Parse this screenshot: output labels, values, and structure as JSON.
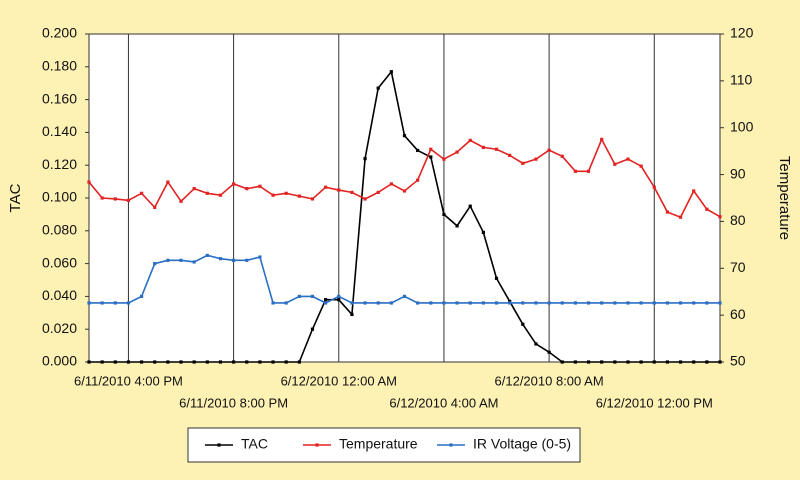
{
  "chart_data": {
    "type": "line",
    "x": [
      "6/11/2010 2:30 PM",
      "6/11/2010 3:00 PM",
      "6/11/2010 3:30 PM",
      "6/11/2010 4:00 PM",
      "6/11/2010 4:30 PM",
      "6/11/2010 5:00 PM",
      "6/11/2010 5:30 PM",
      "6/11/2010 6:00 PM",
      "6/11/2010 6:30 PM",
      "6/11/2010 7:00 PM",
      "6/11/2010 7:30 PM",
      "6/11/2010 8:00 PM",
      "6/11/2010 8:30 PM",
      "6/11/2010 9:00 PM",
      "6/11/2010 9:30 PM",
      "6/11/2010 10:00 PM",
      "6/11/2010 10:30 PM",
      "6/11/2010 11:00 PM",
      "6/11/2010 11:30 PM",
      "6/12/2010 12:00 AM",
      "6/12/2010 12:30 AM",
      "6/12/2010 1:00 AM",
      "6/12/2010 1:30 AM",
      "6/12/2010 2:00 AM",
      "6/12/2010 2:30 AM",
      "6/12/2010 3:00 AM",
      "6/12/2010 3:30 AM",
      "6/12/2010 4:00 AM",
      "6/12/2010 4:30 AM",
      "6/12/2010 5:00 AM",
      "6/12/2010 5:30 AM",
      "6/12/2010 6:00 AM",
      "6/12/2010 6:30 AM",
      "6/12/2010 7:00 AM",
      "6/12/2010 7:30 AM",
      "6/12/2010 8:00 AM",
      "6/12/2010 8:30 AM",
      "6/12/2010 9:00 AM",
      "6/12/2010 9:30 AM",
      "6/12/2010 10:00 AM",
      "6/12/2010 10:30 AM",
      "6/12/2010 11:00 AM",
      "6/12/2010 11:30 AM",
      "6/12/2010 12:00 PM",
      "6/12/2010 12:30 PM",
      "6/12/2010 1:00 PM",
      "6/12/2010 1:30 PM",
      "6/12/2010 2:00 PM",
      "6/12/2010 2:30 PM"
    ],
    "xlim": [
      "6/11/2010 2:30 PM",
      "6/12/2010 2:30 PM"
    ],
    "xticks": [
      "6/11/2010 4:00 PM",
      "6/11/2010 8:00 PM",
      "6/12/2010 12:00 AM",
      "6/12/2010 4:00 AM",
      "6/12/2010 8:00 AM",
      "6/12/2010 12:00 PM"
    ],
    "ylabel": "TAC",
    "y2label": "Temperature",
    "ylim": [
      0,
      0.2
    ],
    "yticks": [
      {
        "value": 0,
        "label": "0.000"
      },
      {
        "value": 0.02,
        "label": "0.020"
      },
      {
        "value": 0.04,
        "label": "0.040"
      },
      {
        "value": 0.06,
        "label": "0.060"
      },
      {
        "value": 0.08,
        "label": "0.080"
      },
      {
        "value": 0.1,
        "label": "0.100"
      },
      {
        "value": 0.12,
        "label": "0.120"
      },
      {
        "value": 0.14,
        "label": "0.140"
      },
      {
        "value": 0.16,
        "label": "0.160"
      },
      {
        "value": 0.18,
        "label": "0.180"
      },
      {
        "value": 0.2,
        "label": "0.200"
      }
    ],
    "y2lim": [
      50,
      120
    ],
    "y2ticks": [
      50,
      60,
      70,
      80,
      90,
      100,
      110,
      120
    ],
    "grid": true,
    "series": [
      {
        "name": "TAC",
        "color": "#000000",
        "values": [
          0,
          0,
          0,
          0,
          0,
          0,
          0,
          0,
          0,
          0,
          0,
          0,
          0,
          0,
          0,
          0,
          0,
          0.02,
          0.038,
          0.038,
          0.029,
          0.124,
          0.167,
          0.177,
          0.138,
          0.129,
          0.125,
          0.09,
          0.083,
          0.095,
          0.079,
          0.051,
          0.037,
          0.023,
          0.011,
          0.006,
          0,
          0,
          0,
          0,
          0,
          0,
          0,
          0,
          0,
          0,
          0,
          0,
          0
        ]
      },
      {
        "name": "Temperature",
        "color": "#e32222",
        "axis": "y2",
        "values": [
          88.4,
          85,
          84.8,
          84.5,
          86,
          83,
          88.4,
          84.3,
          87,
          86,
          85.6,
          88,
          87,
          87.5,
          85.6,
          86,
          85.4,
          84.8,
          87.3,
          86.7,
          86.2,
          84.8,
          86.2,
          88,
          86.5,
          88.8,
          95.4,
          93.3,
          94.8,
          97.3,
          95.8,
          95.4,
          94.1,
          92.4,
          93.3,
          95.2,
          93.9,
          90.7,
          90.7,
          97.5,
          92.2,
          93.3,
          91.8,
          87.3,
          82,
          80.9,
          86.5,
          82.6,
          81
        ]
      },
      {
        "name": "IR Voltage (0-5)",
        "color": "#2a6fc4",
        "values": [
          0.036,
          0.036,
          0.036,
          0.036,
          0.04,
          0.06,
          0.062,
          0.062,
          0.061,
          0.065,
          0.063,
          0.062,
          0.062,
          0.064,
          0.036,
          0.036,
          0.04,
          0.04,
          0.036,
          0.04,
          0.036,
          0.036,
          0.036,
          0.036,
          0.04,
          0.036,
          0.036,
          0.036,
          0.036,
          0.036,
          0.036,
          0.036,
          0.036,
          0.036,
          0.036,
          0.036,
          0.036,
          0.036,
          0.036,
          0.036,
          0.036,
          0.036,
          0.036,
          0.036,
          0.036,
          0.036,
          0.036,
          0.036,
          0.036
        ]
      }
    ]
  }
}
